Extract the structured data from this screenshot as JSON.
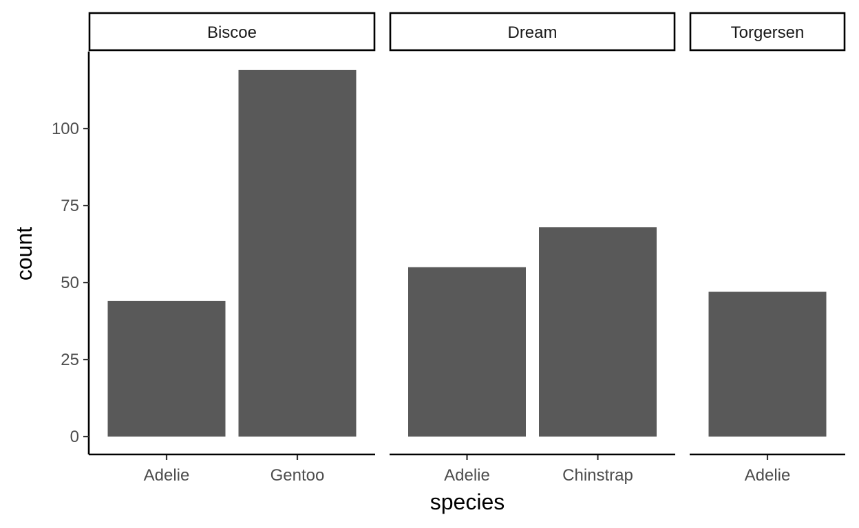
{
  "chart_data": {
    "type": "bar",
    "xlabel": "species",
    "ylabel": "count",
    "ylim": [
      0,
      125
    ],
    "yticks": [
      0,
      25,
      50,
      75,
      100
    ],
    "grid": false,
    "bar_color": "#595959",
    "facets": [
      {
        "name": "Biscoe",
        "categories": [
          "Adelie",
          "Gentoo"
        ],
        "values": [
          44,
          119
        ]
      },
      {
        "name": "Dream",
        "categories": [
          "Adelie",
          "Chinstrap"
        ],
        "values": [
          55,
          68
        ]
      },
      {
        "name": "Torgersen",
        "categories": [
          "Adelie"
        ],
        "values": [
          47
        ]
      }
    ]
  }
}
